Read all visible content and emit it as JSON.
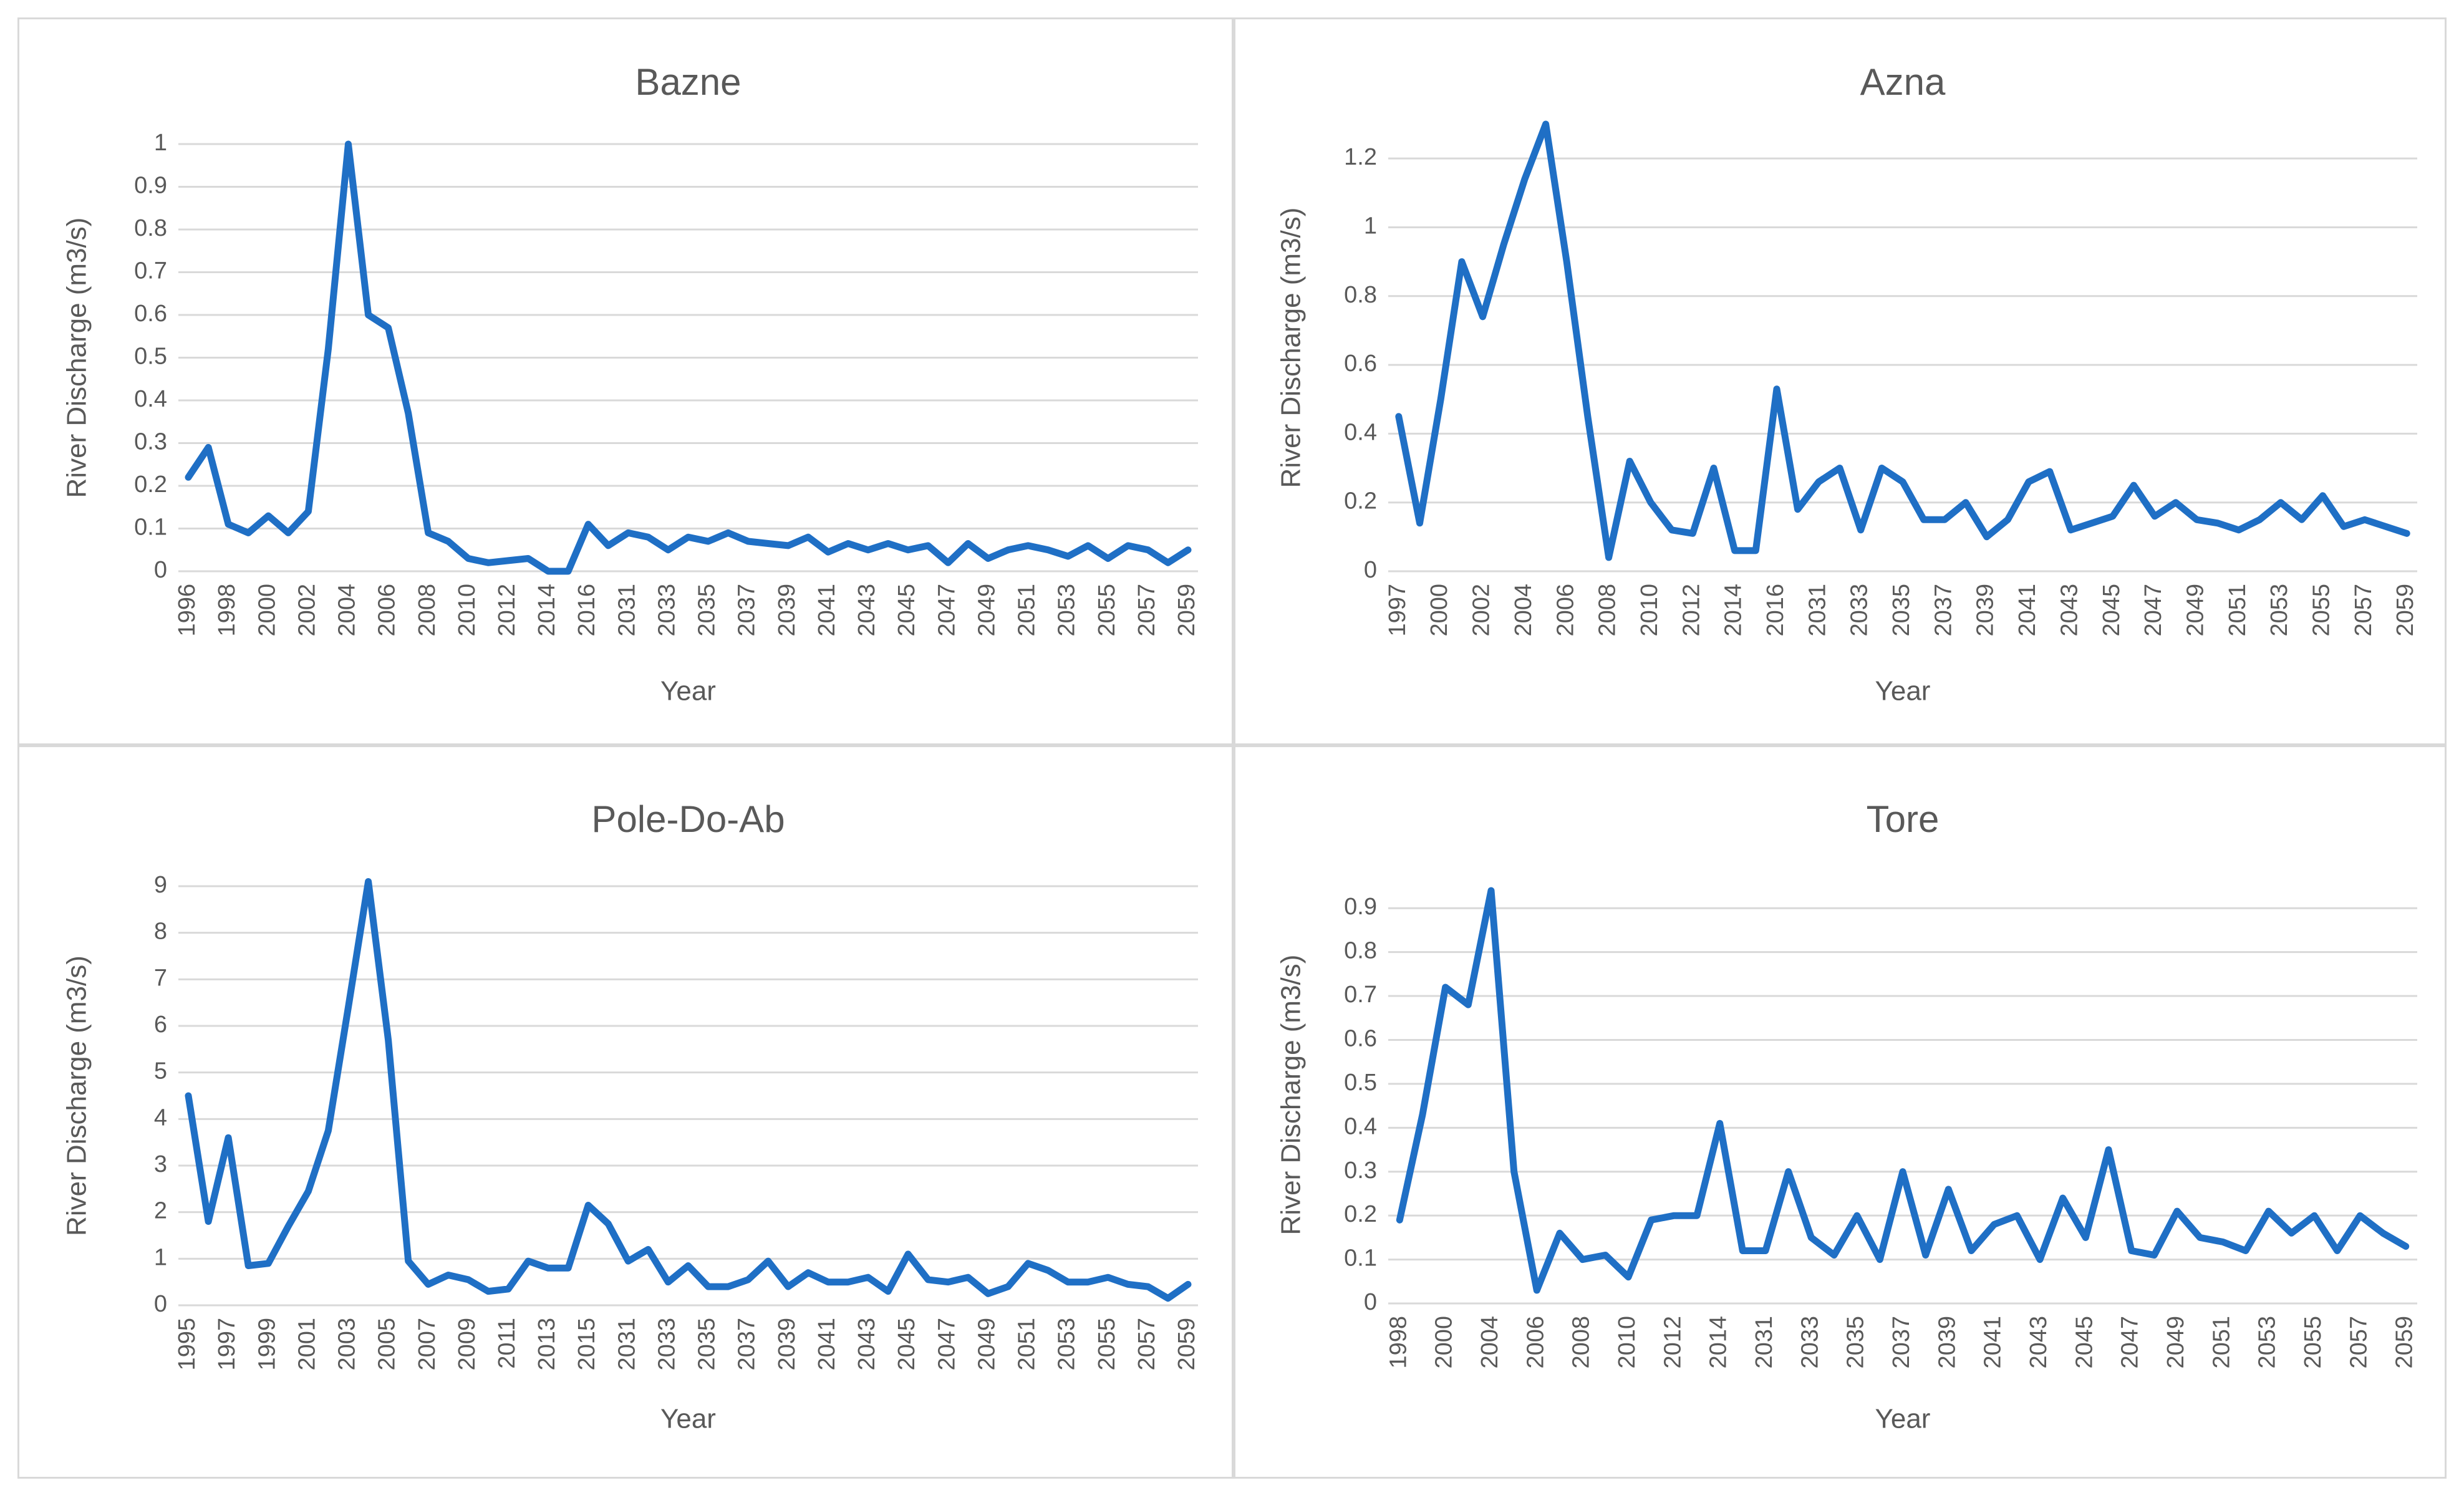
{
  "chart_data": [
    {
      "type": "line",
      "title": "Bazne",
      "xlabel": "Year",
      "ylabel": "River Discharge (m3/s)",
      "ylim": [
        0,
        1
      ],
      "yticks": [
        "0",
        "0.1",
        "0.2",
        "0.3",
        "0.4",
        "0.5",
        "0.6",
        "0.7",
        "0.8",
        "0.9",
        "1"
      ],
      "x": [
        "1996",
        "1997",
        "1998",
        "1999",
        "2000",
        "2001",
        "2002",
        "2003",
        "2004",
        "2005",
        "2006",
        "2007",
        "2008",
        "2009",
        "2010",
        "2011",
        "2012",
        "2013",
        "2014",
        "2015",
        "2016",
        "2030",
        "2031",
        "2032",
        "2033",
        "2034",
        "2035",
        "2036",
        "2037",
        "2038",
        "2039",
        "2040",
        "2041",
        "2042",
        "2043",
        "2044",
        "2045",
        "2046",
        "2047",
        "2048",
        "2049",
        "2050",
        "2051",
        "2052",
        "2053",
        "2054",
        "2055",
        "2056",
        "2057",
        "2058",
        "2059"
      ],
      "xtick_labels": [
        "1996",
        "",
        "1998",
        "",
        "2000",
        "",
        "2002",
        "",
        "2004",
        "",
        "2006",
        "",
        "2008",
        "",
        "2010",
        "",
        "2012",
        "",
        "2014",
        "",
        "2016",
        "",
        "2031",
        "",
        "2033",
        "",
        "2035",
        "",
        "2037",
        "",
        "2039",
        "",
        "2041",
        "",
        "2043",
        "",
        "2045",
        "",
        "2047",
        "",
        "2049",
        "",
        "2051",
        "",
        "2053",
        "",
        "2055",
        "",
        "2057",
        "",
        "2059"
      ],
      "series": [
        {
          "values": [
            0.22,
            0.29,
            0.11,
            0.09,
            0.13,
            0.09,
            0.14,
            0.52,
            1.0,
            0.6,
            0.57,
            0.37,
            0.09,
            0.07,
            0.03,
            0.02,
            0.025,
            0.03,
            0.0,
            0.0,
            0.11,
            0.06,
            0.09,
            0.08,
            0.05,
            0.08,
            0.07,
            0.09,
            0.07,
            0.065,
            0.06,
            0.08,
            0.045,
            0.065,
            0.05,
            0.065,
            0.05,
            0.06,
            0.02,
            0.065,
            0.03,
            0.05,
            0.06,
            0.05,
            0.035,
            0.06,
            0.03,
            0.06,
            0.05,
            0.02,
            0.05
          ]
        }
      ],
      "colors": {
        "line": "#1f6fc5"
      }
    },
    {
      "type": "line",
      "title": "Azna",
      "xlabel": "Year",
      "ylabel": "River Discharge (m3/s)",
      "ylim": [
        0,
        1.3
      ],
      "yticks": [
        "0",
        "0.2",
        "0.4",
        "0.6",
        "0.8",
        "1",
        "1.2"
      ],
      "x": [
        "1997",
        "1999",
        "2000",
        "2001",
        "2002",
        "2003",
        "2004",
        "2005",
        "2006",
        "2007",
        "2008",
        "2009",
        "2010",
        "2011",
        "2012",
        "2013",
        "2014",
        "2015",
        "2016",
        "2030",
        "2031",
        "2032",
        "2033",
        "2034",
        "2035",
        "2036",
        "2037",
        "2038",
        "2039",
        "2040",
        "2041",
        "2042",
        "2043",
        "2044",
        "2045",
        "2046",
        "2047",
        "2048",
        "2049",
        "2050",
        "2051",
        "2052",
        "2053",
        "2054",
        "2055",
        "2056",
        "2057",
        "2058",
        "2059"
      ],
      "xtick_labels": [
        "1997",
        "",
        "2000",
        "",
        "2002",
        "",
        "2004",
        "",
        "2006",
        "",
        "2008",
        "",
        "2010",
        "",
        "2012",
        "",
        "2014",
        "",
        "2016",
        "",
        "2031",
        "",
        "2033",
        "",
        "2035",
        "",
        "2037",
        "",
        "2039",
        "",
        "2041",
        "",
        "2043",
        "",
        "2045",
        "",
        "2047",
        "",
        "2049",
        "",
        "2051",
        "",
        "2053",
        "",
        "2055",
        "",
        "2057",
        "",
        "2059"
      ],
      "series": [
        {
          "values": [
            0.45,
            0.14,
            0.5,
            0.9,
            0.74,
            0.95,
            1.14,
            1.3,
            0.9,
            0.45,
            0.04,
            0.32,
            0.2,
            0.12,
            0.11,
            0.3,
            0.06,
            0.06,
            0.53,
            0.18,
            0.26,
            0.3,
            0.12,
            0.3,
            0.26,
            0.15,
            0.15,
            0.2,
            0.1,
            0.15,
            0.26,
            0.29,
            0.12,
            0.14,
            0.16,
            0.25,
            0.16,
            0.2,
            0.15,
            0.14,
            0.12,
            0.15,
            0.2,
            0.15,
            0.22,
            0.13,
            0.15,
            0.13,
            0.11
          ]
        }
      ],
      "colors": {
        "line": "#1f6fc5"
      }
    },
    {
      "type": "line",
      "title": "Pole-Do-Ab",
      "xlabel": "Year",
      "ylabel": "River Discharge (m3/s)",
      "ylim": [
        0,
        9
      ],
      "yticks": [
        "0",
        "1",
        "2",
        "3",
        "4",
        "5",
        "6",
        "7",
        "8",
        "9"
      ],
      "x": [
        "1995",
        "1996",
        "1997",
        "1998",
        "1999",
        "2000",
        "2001",
        "2002",
        "2003",
        "2004",
        "2005",
        "2006",
        "2007",
        "2008",
        "2009",
        "2010",
        "2011",
        "2012",
        "2013",
        "2014",
        "2015",
        "2016",
        "2031",
        "2032",
        "2033",
        "2034",
        "2035",
        "2036",
        "2037",
        "2038",
        "2039",
        "2040",
        "2041",
        "2042",
        "2043",
        "2044",
        "2045",
        "2046",
        "2047",
        "2048",
        "2049",
        "2050",
        "2051",
        "2052",
        "2053",
        "2054",
        "2055",
        "2056",
        "2057",
        "2058",
        "2059"
      ],
      "xtick_labels": [
        "1995",
        "",
        "1997",
        "",
        "1999",
        "",
        "2001",
        "",
        "2003",
        "",
        "2005",
        "",
        "2007",
        "",
        "2009",
        "",
        "2011",
        "",
        "2013",
        "",
        "2015",
        "",
        "2031",
        "",
        "2033",
        "",
        "2035",
        "",
        "2037",
        "",
        "2039",
        "",
        "2041",
        "",
        "2043",
        "",
        "2045",
        "",
        "2047",
        "",
        "2049",
        "",
        "2051",
        "",
        "2053",
        "",
        "2055",
        "",
        "2057",
        "",
        "2059"
      ],
      "series": [
        {
          "values": [
            4.5,
            1.8,
            3.6,
            0.85,
            0.9,
            1.7,
            2.45,
            3.75,
            6.4,
            9.1,
            5.7,
            0.95,
            0.45,
            0.65,
            0.55,
            0.3,
            0.35,
            0.95,
            0.8,
            0.8,
            2.15,
            1.75,
            0.95,
            1.2,
            0.5,
            0.85,
            0.4,
            0.4,
            0.55,
            0.95,
            0.4,
            0.7,
            0.5,
            0.5,
            0.6,
            0.3,
            1.1,
            0.55,
            0.5,
            0.6,
            0.25,
            0.4,
            0.9,
            0.75,
            0.5,
            0.5,
            0.6,
            0.45,
            0.4,
            0.15,
            0.45
          ]
        }
      ],
      "colors": {
        "line": "#1f6fc5"
      }
    },
    {
      "type": "line",
      "title": "Tore",
      "xlabel": "Year",
      "ylabel": "River Discharge (m3/s)",
      "ylim": [
        0,
        0.95
      ],
      "yticks": [
        "0",
        "0.1",
        "0.2",
        "0.3",
        "0.4",
        "0.5",
        "0.6",
        "0.7",
        "0.8",
        "0.9"
      ],
      "x": [
        "1998",
        "1999",
        "2000",
        "2001",
        "2004",
        "2005",
        "2006",
        "2007",
        "2008",
        "2009",
        "2010",
        "2011",
        "2012",
        "2013",
        "2014",
        "2015",
        "2031",
        "2032",
        "2033",
        "2034",
        "2035",
        "2036",
        "2037",
        "2038",
        "2039",
        "2040",
        "2041",
        "2042",
        "2043",
        "2044",
        "2045",
        "2046",
        "2047",
        "2048",
        "2049",
        "2050",
        "2051",
        "2052",
        "2053",
        "2054",
        "2055",
        "2056",
        "2057",
        "2058",
        "2059"
      ],
      "xtick_labels": [
        "1998",
        "",
        "2000",
        "",
        "2004",
        "",
        "2006",
        "",
        "2008",
        "",
        "2010",
        "",
        "2012",
        "",
        "2014",
        "",
        "2031",
        "",
        "2033",
        "",
        "2035",
        "",
        "2037",
        "",
        "2039",
        "",
        "2041",
        "",
        "2043",
        "",
        "2045",
        "",
        "2047",
        "",
        "2049",
        "",
        "2051",
        "",
        "2053",
        "",
        "2055",
        "",
        "2057",
        "",
        "2059"
      ],
      "series": [
        {
          "values": [
            0.19,
            0.43,
            0.72,
            0.68,
            0.94,
            0.3,
            0.03,
            0.16,
            0.1,
            0.11,
            0.06,
            0.19,
            0.2,
            0.2,
            0.41,
            0.12,
            0.12,
            0.3,
            0.15,
            0.11,
            0.2,
            0.1,
            0.3,
            0.11,
            0.26,
            0.12,
            0.18,
            0.2,
            0.1,
            0.24,
            0.15,
            0.35,
            0.12,
            0.11,
            0.21,
            0.15,
            0.14,
            0.12,
            0.21,
            0.16,
            0.2,
            0.12,
            0.2,
            0.16,
            0.13
          ]
        }
      ],
      "colors": {
        "line": "#1f6fc5"
      }
    }
  ]
}
